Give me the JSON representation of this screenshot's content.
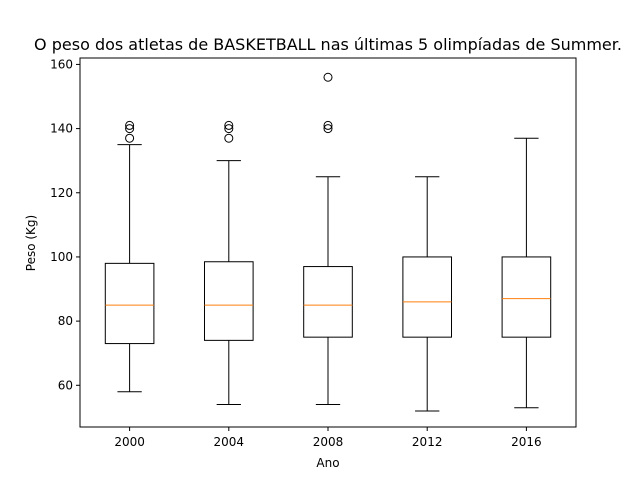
{
  "chart_data": {
    "type": "box",
    "title": "O peso dos atletas de BASKETBALL nas últimas 5 olimpíadas de Summer.",
    "xlabel": "Ano",
    "ylabel": "Peso (Kg)",
    "categories": [
      "2000",
      "2004",
      "2008",
      "2012",
      "2016"
    ],
    "ylim": [
      47,
      162
    ],
    "yticks": [
      60,
      80,
      100,
      120,
      140,
      160
    ],
    "grid": false,
    "colors": {
      "box": "#000000",
      "median": "#ff7f0e",
      "whisker": "#000000",
      "flier": "#000000"
    },
    "boxes": [
      {
        "category": "2000",
        "whisker_low": 58,
        "q1": 73,
        "median": 85,
        "q3": 98,
        "whisker_high": 135,
        "fliers": [
          137,
          140,
          141
        ]
      },
      {
        "category": "2004",
        "whisker_low": 54,
        "q1": 74,
        "median": 85,
        "q3": 98.5,
        "whisker_high": 130,
        "fliers": [
          137,
          140,
          141
        ]
      },
      {
        "category": "2008",
        "whisker_low": 54,
        "q1": 75,
        "median": 85,
        "q3": 97,
        "whisker_high": 125,
        "fliers": [
          140,
          141,
          156
        ]
      },
      {
        "category": "2012",
        "whisker_low": 52,
        "q1": 75,
        "median": 86,
        "q3": 100,
        "whisker_high": 125,
        "fliers": []
      },
      {
        "category": "2016",
        "whisker_low": 53,
        "q1": 75,
        "median": 87,
        "q3": 100,
        "whisker_high": 137,
        "fliers": []
      }
    ]
  }
}
